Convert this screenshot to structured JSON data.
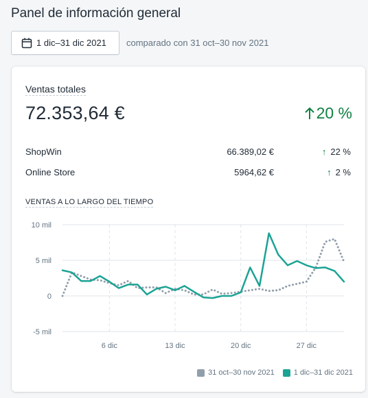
{
  "header": {
    "title": "Panel de información general",
    "date_range_label": "1 dic–31 dic 2021",
    "compare_label": "comparado con 31 oct–30 nov 2021"
  },
  "card": {
    "title": "Ventas totales",
    "total": "72.353,64 €",
    "change": "20 %",
    "rows": [
      {
        "name": "ShopWin",
        "amount": "66.389,02 €",
        "change": "22 %"
      },
      {
        "name": "Online Store",
        "amount": "5964,62 €",
        "change": "2 %"
      }
    ],
    "chart_heading": "VENTAS A LO LARGO DEL TIEMPO"
  },
  "colors": {
    "accent_green": "#108043",
    "current_series": "#1ba394",
    "previous_series": "#919eab"
  },
  "chart_data": {
    "type": "line",
    "ylabel": "",
    "xlabel": "",
    "y_tick_labels": [
      "10 mil",
      "5 mil",
      "0",
      "-5 mil"
    ],
    "y_ticks": [
      10000,
      5000,
      0,
      -5000
    ],
    "ylim": [
      -5000,
      10000
    ],
    "x_tick_labels": [
      "6 dic",
      "13 dic",
      "20 dic",
      "27 dic"
    ],
    "x_ticks": [
      6,
      13,
      20,
      27
    ],
    "xlim": [
      1,
      31
    ],
    "grid": true,
    "legend_position": "bottom-right",
    "series": [
      {
        "name": "31 oct–30 nov 2021",
        "style": "dotted",
        "x": [
          1,
          2,
          3,
          4,
          5,
          6,
          7,
          8,
          9,
          10,
          11,
          12,
          13,
          14,
          15,
          16,
          17,
          18,
          19,
          20,
          21,
          22,
          23,
          24,
          25,
          26,
          27,
          28,
          29,
          30,
          31
        ],
        "values": [
          0,
          3300,
          2800,
          2300,
          2200,
          1800,
          1500,
          2100,
          1100,
          1200,
          1200,
          400,
          1000,
          800,
          200,
          200,
          900,
          300,
          400,
          600,
          800,
          1000,
          700,
          800,
          1400,
          1700,
          2000,
          4000,
          7600,
          8000,
          4800
        ]
      },
      {
        "name": "1 dic–31 dic 2021",
        "style": "solid",
        "x": [
          1,
          2,
          3,
          4,
          5,
          6,
          7,
          8,
          9,
          10,
          11,
          12,
          13,
          14,
          15,
          16,
          17,
          18,
          19,
          20,
          21,
          22,
          23,
          24,
          25,
          26,
          27,
          28,
          29,
          30,
          31
        ],
        "values": [
          3600,
          3300,
          2100,
          2100,
          2800,
          2000,
          1100,
          1600,
          1600,
          200,
          1000,
          1300,
          800,
          1400,
          600,
          -200,
          -300,
          0,
          0,
          500,
          4000,
          1400,
          8800,
          5800,
          4300,
          4900,
          4300,
          3900,
          4000,
          3500,
          2000
        ]
      }
    ]
  }
}
